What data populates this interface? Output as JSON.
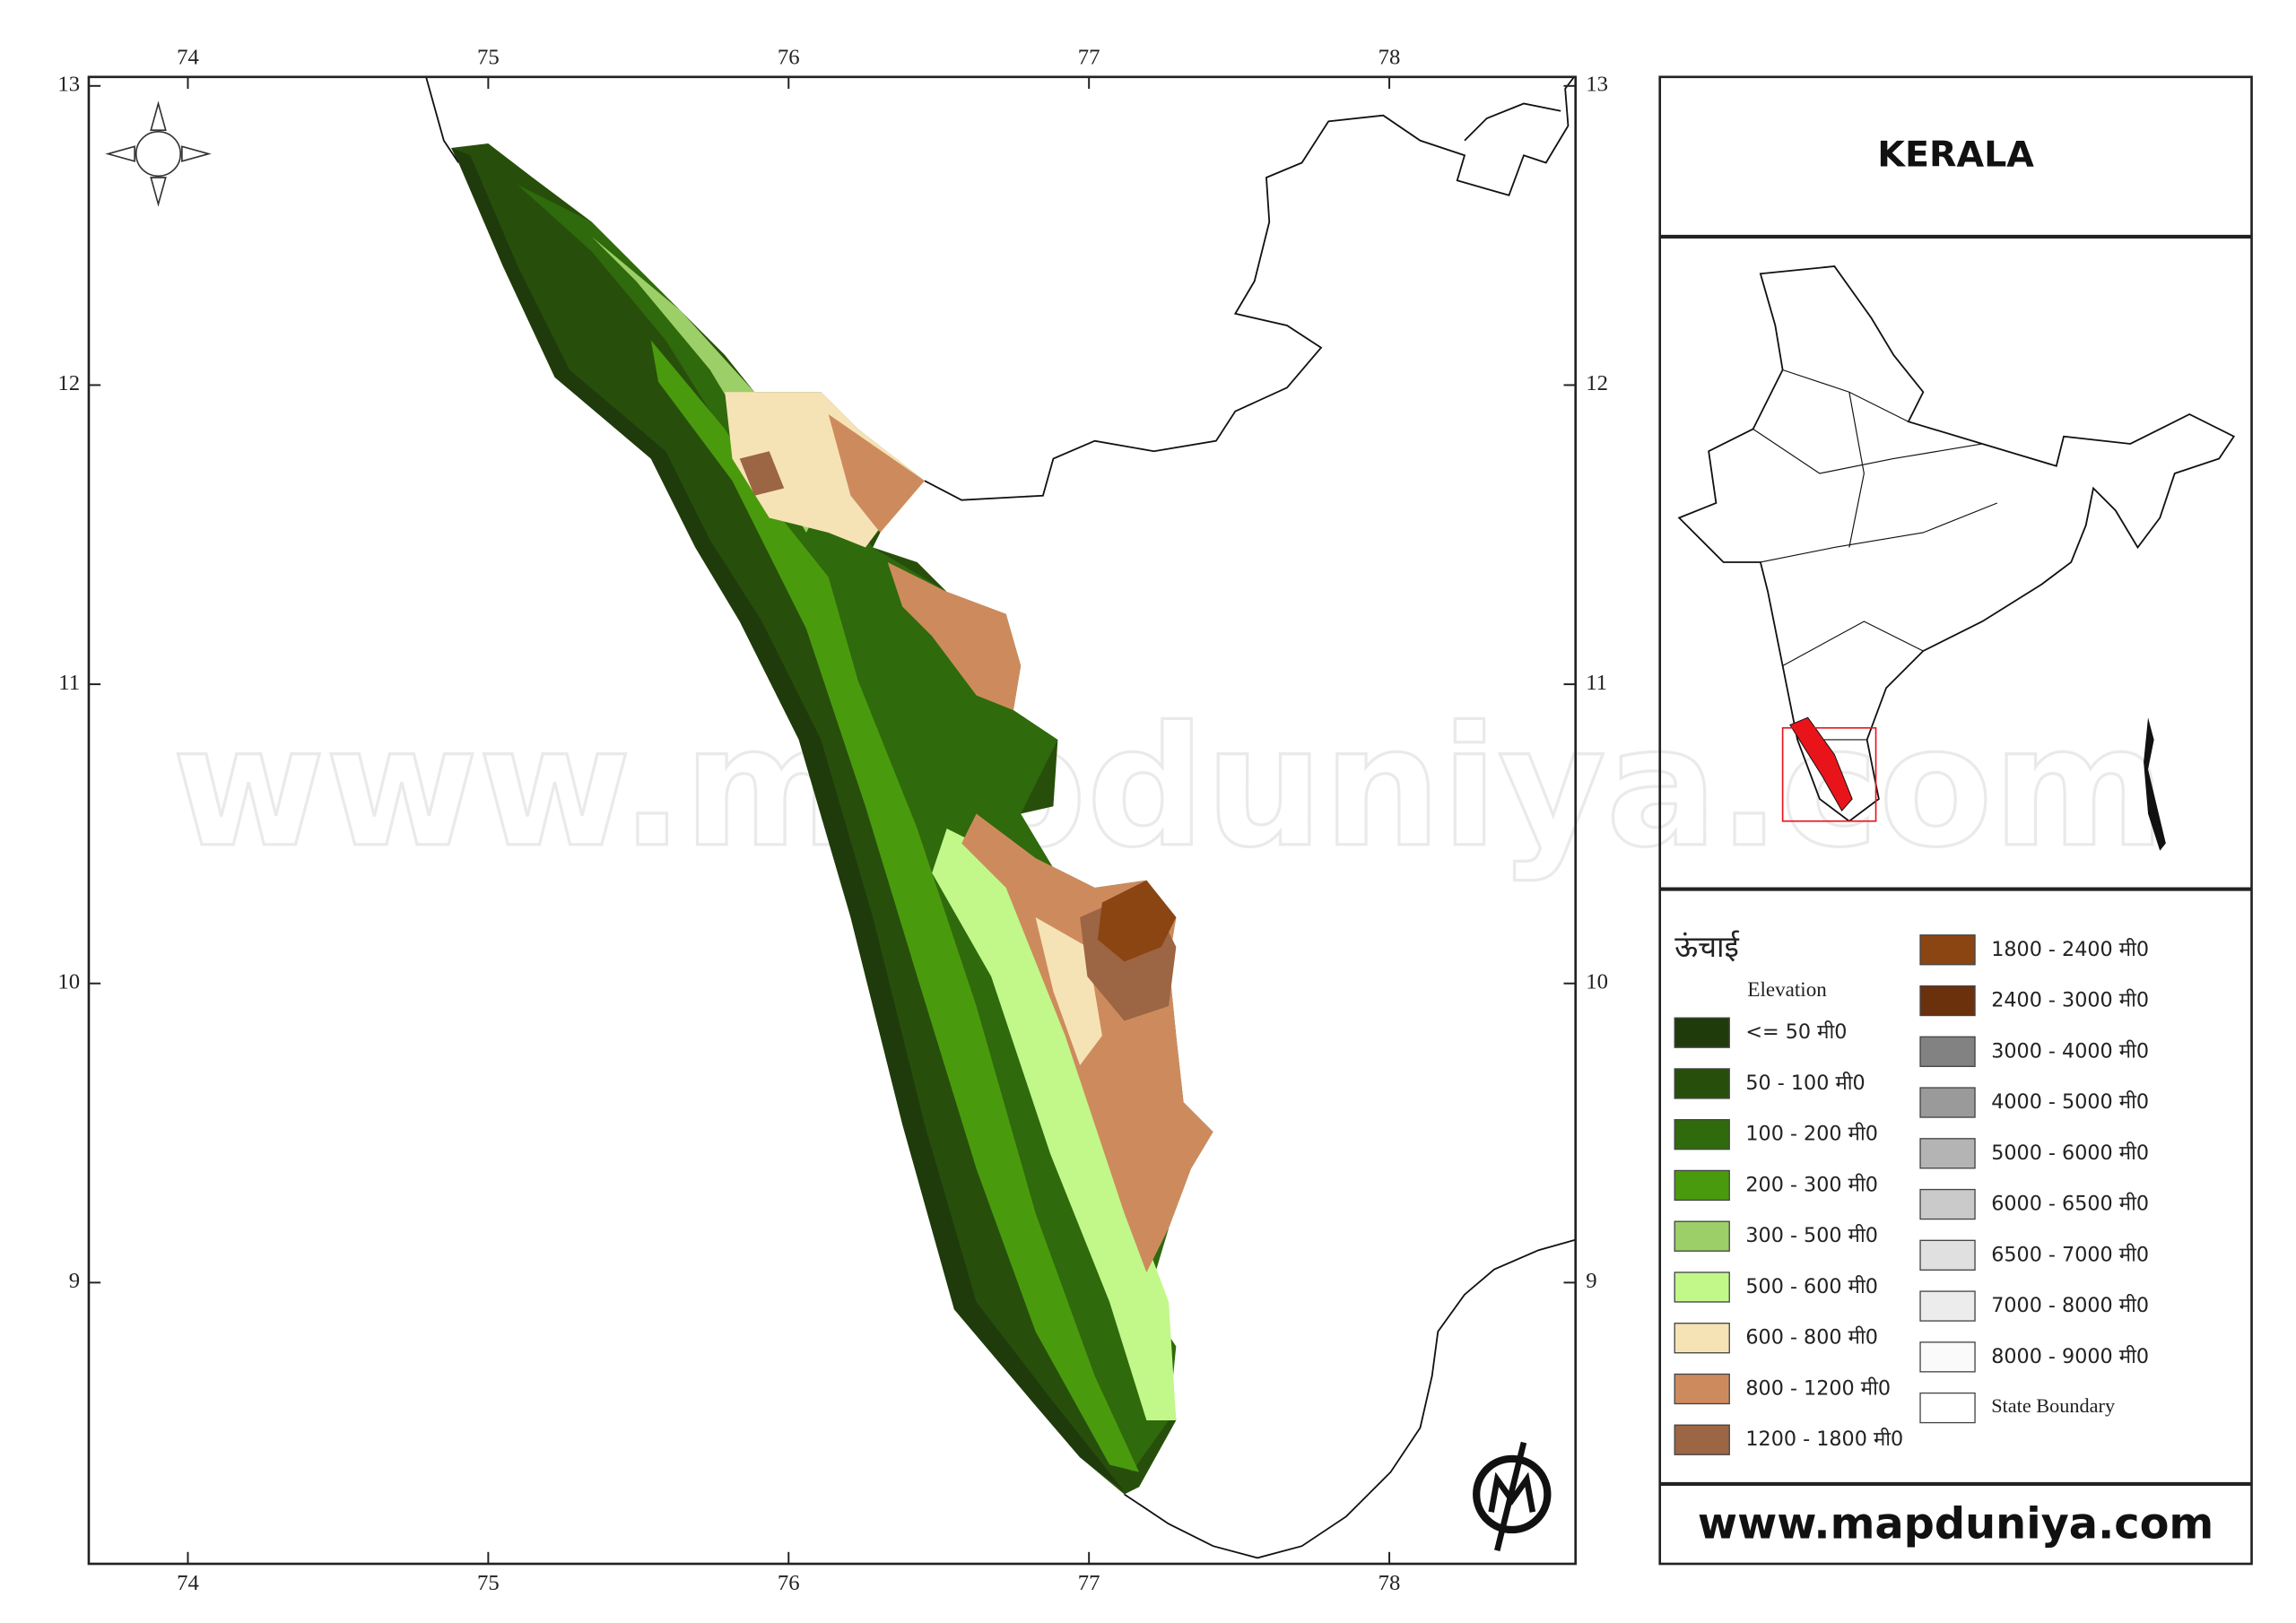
{
  "map": {
    "title": "KERALA",
    "xlim": [
      73.67,
      78.62
    ],
    "ylim": [
      8.06,
      13.03
    ],
    "xticks": [
      74,
      75,
      76,
      77,
      78
    ],
    "yticks": [
      9,
      10,
      11,
      12,
      13
    ],
    "legend": {
      "title": "ऊंचाई",
      "subtitle": "Elevation",
      "items": [
        {
          "label": "<= 50 मी0",
          "color": "#1f3b0c"
        },
        {
          "label": "50 - 100 मी0",
          "color": "#274f0b"
        },
        {
          "label": "100 - 200 मी0",
          "color": "#2f6a0c"
        },
        {
          "label": "200 - 300 मी0",
          "color": "#4a9a0e"
        },
        {
          "label": "300 - 500 मी0",
          "color": "#9ccf68"
        },
        {
          "label": "500 - 600 मी0",
          "color": "#c2f78a"
        },
        {
          "label": "600 - 800 मी0",
          "color": "#f6e3b5"
        },
        {
          "label": "800 - 1200 मी0",
          "color": "#cd8b5d"
        },
        {
          "label": "1200 - 1800 मी0",
          "color": "#9c6544"
        },
        {
          "label": "1800 - 2400 मी0",
          "color": "#8b4513"
        },
        {
          "label": "2400 - 3000 मी0",
          "color": "#6b300c"
        },
        {
          "label": "3000 - 4000 मी0",
          "color": "#828282"
        },
        {
          "label": "4000 - 5000 मी0",
          "color": "#9a9a9a"
        },
        {
          "label": "5000 - 6000 मी0",
          "color": "#b4b4b4"
        },
        {
          "label": "6000 - 6500 मी0",
          "color": "#cacaca"
        },
        {
          "label": "6500 - 7000 मी0",
          "color": "#e0e0e0"
        },
        {
          "label": "7000 - 8000 मी0",
          "color": "#ececec"
        },
        {
          "label": "8000 - 9000 मी0",
          "color": "#fafafa"
        },
        {
          "label": "State Boundary",
          "color": "#ffffff"
        }
      ]
    },
    "watermark": "www.mapduniya.com",
    "website": "www.mapduniya.com"
  }
}
